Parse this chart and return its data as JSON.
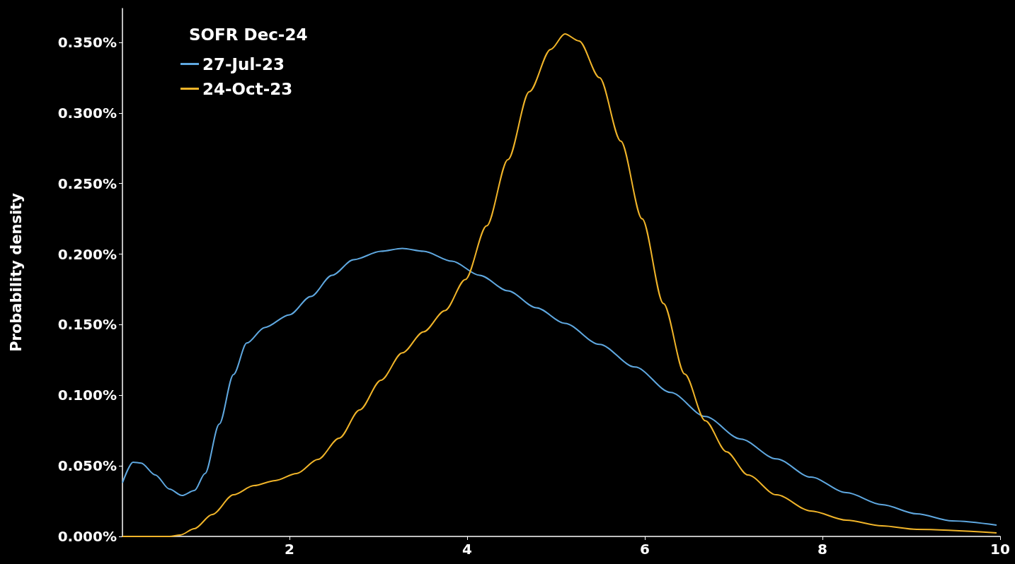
{
  "chart_data": {
    "type": "line",
    "ylabel": "Probability density",
    "legend_title": "SOFR Dec-24",
    "legend": "top left",
    "grid": false,
    "marker": "none",
    "line_style": "solid",
    "xlim": [
      0.12,
      10
    ],
    "xticks": [
      2,
      4,
      6,
      8,
      10
    ],
    "ylim": [
      0,
      0.374
    ],
    "yticks": [
      {
        "value": 0,
        "label": "0.000%"
      },
      {
        "value": 0.05,
        "label": "0.050%"
      },
      {
        "value": 0.1,
        "label": "0.100%"
      },
      {
        "value": 0.15,
        "label": "0.150%"
      },
      {
        "value": 0.2,
        "label": "0.200%"
      },
      {
        "value": 0.25,
        "label": "0.250%"
      },
      {
        "value": 0.3,
        "label": "0.300%"
      },
      {
        "value": 0.35,
        "label": "0.350%"
      }
    ],
    "series": [
      {
        "name": "27-Jul-23",
        "color": "#5fa8e0",
        "x": [
          0.12,
          0.24,
          0.33,
          0.49,
          0.65,
          0.79,
          0.93,
          1.05,
          1.21,
          1.37,
          1.52,
          1.72,
          2.0,
          2.24,
          2.48,
          2.72,
          3.03,
          3.27,
          3.51,
          3.83,
          4.14,
          4.46,
          4.78,
          5.1,
          5.49,
          5.89,
          6.29,
          6.68,
          7.08,
          7.48,
          7.87,
          8.27,
          8.67,
          9.06,
          9.46,
          9.96
        ],
        "values": [
          0.038,
          0.0526,
          0.052,
          0.0436,
          0.0335,
          0.029,
          0.0325,
          0.0446,
          0.0796,
          0.1147,
          0.137,
          0.148,
          0.157,
          0.17,
          0.185,
          0.196,
          0.202,
          0.204,
          0.202,
          0.195,
          0.185,
          0.174,
          0.162,
          0.151,
          0.136,
          0.12,
          0.102,
          0.085,
          0.069,
          0.055,
          0.042,
          0.031,
          0.0225,
          0.016,
          0.011,
          0.008
        ]
      },
      {
        "name": "24-Oct-23",
        "color": "#f0b429",
        "x": [
          0.12,
          0.65,
          0.77,
          0.93,
          1.13,
          1.37,
          1.6,
          1.84,
          2.08,
          2.32,
          2.56,
          2.79,
          3.03,
          3.27,
          3.51,
          3.75,
          3.98,
          4.22,
          4.46,
          4.7,
          4.94,
          5.1,
          5.26,
          5.49,
          5.73,
          5.97,
          6.21,
          6.45,
          6.68,
          6.92,
          7.16,
          7.48,
          7.87,
          8.27,
          8.67,
          9.06,
          9.96
        ],
        "values": [
          0,
          0,
          0.001,
          0.0055,
          0.0155,
          0.0295,
          0.036,
          0.0396,
          0.0446,
          0.0546,
          0.0696,
          0.0896,
          0.1107,
          0.13,
          0.145,
          0.16,
          0.182,
          0.22,
          0.267,
          0.315,
          0.345,
          0.356,
          0.351,
          0.325,
          0.28,
          0.225,
          0.165,
          0.115,
          0.082,
          0.06,
          0.0436,
          0.0295,
          0.018,
          0.0115,
          0.0075,
          0.005,
          0.0025
        ]
      }
    ]
  }
}
